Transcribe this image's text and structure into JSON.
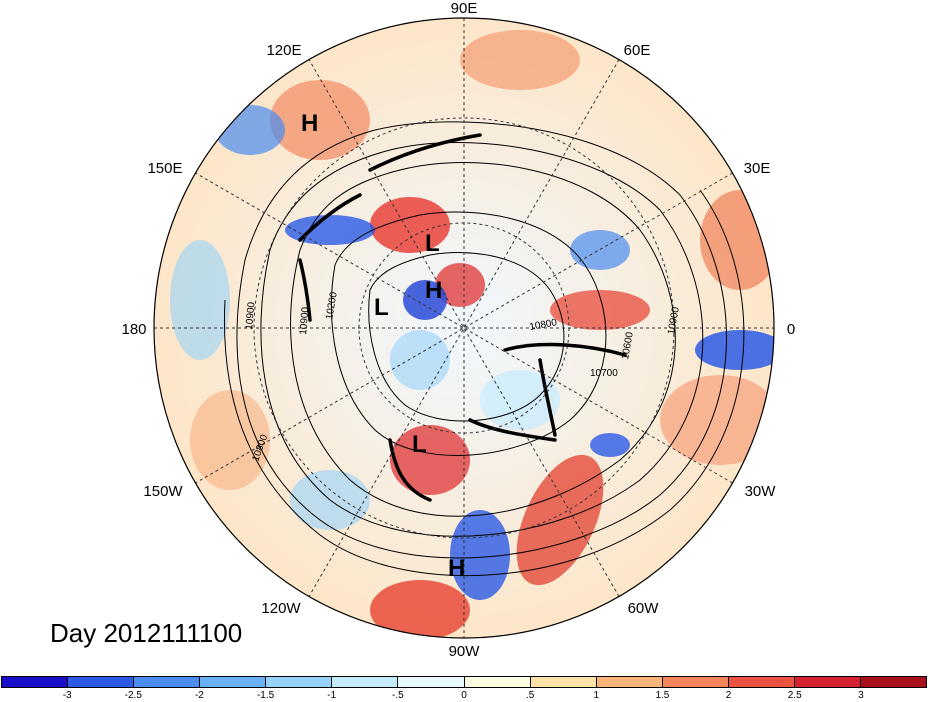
{
  "date_label": "Day 2012111100",
  "longitude_labels": [
    {
      "id": "lon-90e",
      "text": "90E"
    },
    {
      "id": "lon-60e",
      "text": "60E"
    },
    {
      "id": "lon-30e",
      "text": "30E"
    },
    {
      "id": "lon-0",
      "text": "0"
    },
    {
      "id": "lon-30w",
      "text": "30W"
    },
    {
      "id": "lon-60w",
      "text": "60W"
    },
    {
      "id": "lon-90w",
      "text": "90W"
    },
    {
      "id": "lon-120w",
      "text": "120W"
    },
    {
      "id": "lon-150w",
      "text": "150W"
    },
    {
      "id": "lon-180",
      "text": "180"
    },
    {
      "id": "lon-150e",
      "text": "150E"
    },
    {
      "id": "lon-120e",
      "text": "120E"
    }
  ],
  "pressure_centers": [
    {
      "id": "high-siberia",
      "text": "H"
    },
    {
      "id": "low-east-siberia",
      "text": "L"
    },
    {
      "id": "high-pole",
      "text": "H"
    },
    {
      "id": "low-alaska",
      "text": "L"
    },
    {
      "id": "low-north-america",
      "text": "L"
    },
    {
      "id": "high-gulf",
      "text": "H"
    }
  ],
  "contour_labels": [
    "10900",
    "10200",
    "10900",
    "10800",
    "10700",
    "10600",
    "10900",
    "10800"
  ],
  "colorbar": {
    "colors": [
      "#1a0fc8",
      "#2a5ae6",
      "#4a8cf0",
      "#6ab0f5",
      "#96d2fa",
      "#c4ecfd",
      "#e8f8ff",
      "#fffbe0",
      "#fde3a8",
      "#f9b47a",
      "#f5845a",
      "#ee5240",
      "#d42230",
      "#a8101e"
    ],
    "tick_labels": [
      "-3",
      "-2.5",
      "-2",
      "-1.5",
      "-1",
      "-.5",
      "0",
      ".5",
      "1",
      "1.5",
      "2",
      "2.5",
      "3"
    ]
  }
}
